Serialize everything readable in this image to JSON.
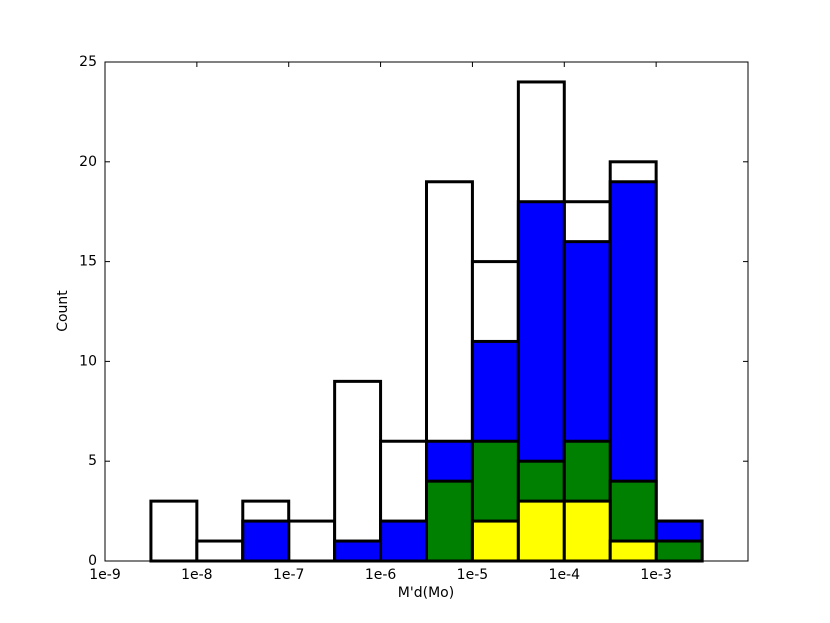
{
  "chart_data": {
    "type": "histogram",
    "xlabel": "M'd(Mo)",
    "ylabel": "Count",
    "xscale": "log",
    "bins": [
      1e-09,
      3.162e-09,
      1e-08,
      3.162e-08,
      1e-07,
      3.162e-07,
      1e-06,
      3.162e-06,
      1e-05,
      3.162e-05,
      0.0001,
      0.0003162,
      0.001,
      0.003162,
      0.01
    ],
    "series": [
      {
        "color": "#ffffff",
        "values": [
          0,
          3,
          1,
          3,
          2,
          9,
          6,
          19,
          15,
          24,
          18,
          20,
          2,
          0
        ]
      },
      {
        "color": "#0000ff",
        "values": [
          0,
          0,
          0,
          2,
          0,
          1,
          2,
          6,
          11,
          18,
          16,
          19,
          2,
          0
        ]
      },
      {
        "color": "#008000",
        "values": [
          0,
          0,
          0,
          0,
          0,
          0,
          0,
          4,
          6,
          5,
          6,
          4,
          1,
          0
        ]
      },
      {
        "color": "#ffff00",
        "values": [
          0,
          0,
          0,
          0,
          0,
          0,
          0,
          0,
          2,
          3,
          3,
          1,
          0,
          0
        ]
      }
    ],
    "xlim": [
      1e-09,
      0.01
    ],
    "xticks": [
      {
        "value": 1e-09,
        "label": "1e-9"
      },
      {
        "value": 1e-08,
        "label": "1e-8"
      },
      {
        "value": 1e-07,
        "label": "1e-7"
      },
      {
        "value": 1e-06,
        "label": "1e-6"
      },
      {
        "value": 1e-05,
        "label": "1e-5"
      },
      {
        "value": 0.0001,
        "label": "1e-4"
      },
      {
        "value": 0.001,
        "label": "1e-3"
      }
    ],
    "ylim": [
      0,
      25
    ],
    "yticks": [
      0,
      5,
      10,
      15,
      20,
      25
    ]
  }
}
